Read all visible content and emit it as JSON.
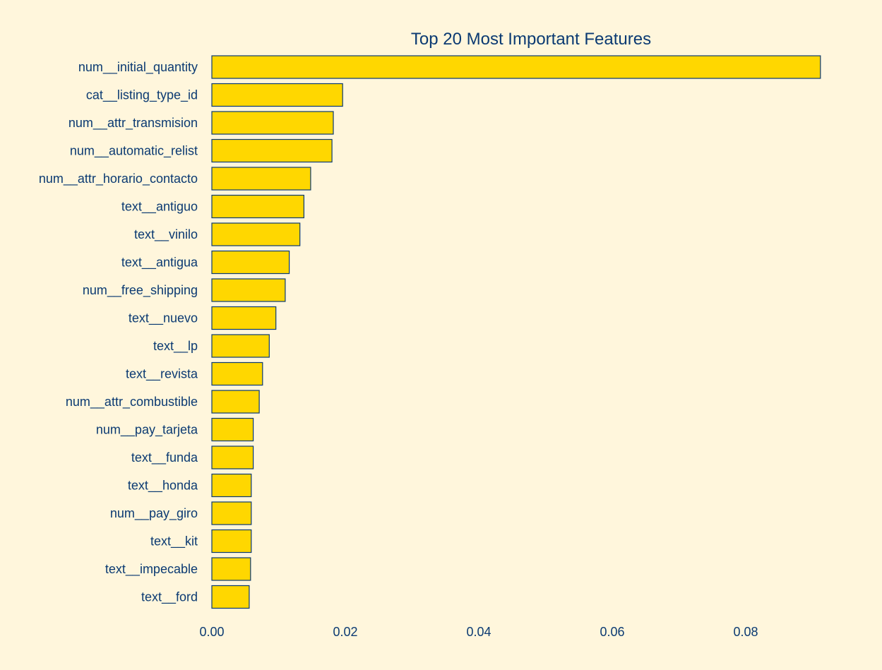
{
  "chart_data": {
    "type": "bar",
    "orientation": "horizontal",
    "title": "Top 20 Most Important Features",
    "xlabel": "",
    "ylabel": "",
    "grid": false,
    "xlim": [
      0,
      0.095
    ],
    "x_ticks": [
      0.0,
      0.02,
      0.04,
      0.06,
      0.08
    ],
    "x_tick_labels": [
      "0.00",
      "0.02",
      "0.04",
      "0.06",
      "0.08"
    ],
    "categories": [
      "num__initial_quantity",
      "cat__listing_type_id",
      "num__attr_transmision",
      "num__automatic_relist",
      "num__attr_horario_contacto",
      "text__antiguo",
      "text__vinilo",
      "text__antigua",
      "num__free_shipping",
      "text__nuevo",
      "text__lp",
      "text__revista",
      "num__attr_combustible",
      "num__pay_tarjeta",
      "text__funda",
      "text__honda",
      "num__pay_giro",
      "text__kit",
      "text__impecable",
      "text__ford"
    ],
    "values": [
      0.0912,
      0.0196,
      0.0182,
      0.018,
      0.0148,
      0.0138,
      0.0132,
      0.0116,
      0.011,
      0.0096,
      0.0086,
      0.0076,
      0.0071,
      0.0062,
      0.0062,
      0.0059,
      0.0059,
      0.0059,
      0.0058,
      0.0056
    ],
    "colors": {
      "bar_fill": "#FFD700",
      "bar_edge": "#0B3A72",
      "text": "#0B3A72",
      "background": "#FFF6DC"
    }
  }
}
